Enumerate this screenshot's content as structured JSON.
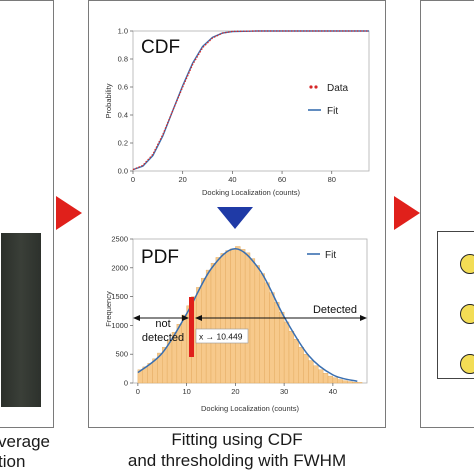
{
  "left_caption": {
    "line1": "verage",
    "line2": "tion"
  },
  "center_caption": {
    "line1": "Fitting using CDF",
    "line2": "and thresholding with FWHM"
  },
  "cdf_chart": {
    "title": "CDF",
    "xlabel": "Docking Localization (counts)",
    "ylabel": "Probability",
    "x_ticks": [
      "0",
      "20",
      "40",
      "60",
      "80"
    ],
    "y_ticks": [
      "0.0",
      "0.2",
      "0.4",
      "0.6",
      "0.8",
      "1.0"
    ],
    "legend": {
      "data": "Data",
      "fit": "Fit"
    },
    "colors": {
      "data": "#d62728",
      "fit": "#3a6fb0"
    }
  },
  "pdf_chart": {
    "title": "PDF",
    "xlabel": "Docking Localization (counts)",
    "ylabel": "Frequency",
    "x_ticks": [
      "0",
      "10",
      "20",
      "30",
      "40"
    ],
    "y_ticks": [
      "0",
      "500",
      "1000",
      "1500",
      "2000",
      "2500"
    ],
    "legend": {
      "fit": "Fit"
    },
    "not_detected_label_line1": "not",
    "not_detected_label_line2": "detected",
    "detected_label": "Detected",
    "threshold_label": "x → 10.449",
    "colors": {
      "bars": "#f7c98b",
      "bar_edge": "#e0a75a",
      "fit": "#3a6fb0",
      "threshold": "#e0201b"
    }
  },
  "chart_data": [
    {
      "type": "line",
      "title": "CDF",
      "xlabel": "Docking Localization (counts)",
      "ylabel": "Probability",
      "xlim": [
        0,
        95
      ],
      "ylim": [
        0,
        1.0
      ],
      "series": [
        {
          "name": "Data",
          "x": [
            0,
            4,
            8,
            12,
            16,
            20,
            24,
            28,
            32,
            36,
            40,
            50,
            60,
            80,
            95
          ],
          "y": [
            0.01,
            0.04,
            0.12,
            0.26,
            0.43,
            0.6,
            0.76,
            0.88,
            0.95,
            0.985,
            0.997,
            1.0,
            1.0,
            1.0,
            1.0
          ]
        },
        {
          "name": "Fit",
          "x": [
            0,
            4,
            8,
            12,
            16,
            20,
            24,
            28,
            32,
            36,
            40,
            50,
            60,
            80,
            95
          ],
          "y": [
            0.01,
            0.035,
            0.11,
            0.25,
            0.43,
            0.61,
            0.77,
            0.89,
            0.955,
            0.985,
            0.996,
            1.0,
            1.0,
            1.0,
            1.0
          ]
        }
      ]
    },
    {
      "type": "bar",
      "title": "PDF",
      "xlabel": "Docking Localization (counts)",
      "ylabel": "Frequency",
      "xlim": [
        -1,
        47
      ],
      "ylim": [
        0,
        2500
      ],
      "bin_width": 1,
      "bin_starts": [
        0,
        1,
        2,
        3,
        4,
        5,
        6,
        7,
        8,
        9,
        10,
        11,
        12,
        13,
        14,
        15,
        16,
        17,
        18,
        19,
        20,
        21,
        22,
        23,
        24,
        25,
        26,
        27,
        28,
        29,
        30,
        31,
        32,
        33,
        34,
        35,
        36,
        37,
        38,
        39,
        40,
        41,
        42,
        43,
        44,
        45
      ],
      "values": [
        230,
        280,
        340,
        420,
        520,
        620,
        740,
        880,
        1020,
        1180,
        1340,
        1500,
        1660,
        1820,
        1960,
        2080,
        2180,
        2250,
        2300,
        2330,
        2370,
        2320,
        2260,
        2160,
        2040,
        1900,
        1740,
        1570,
        1400,
        1230,
        1060,
        900,
        760,
        620,
        500,
        390,
        300,
        230,
        170,
        120,
        90,
        60,
        40,
        25,
        15,
        10
      ],
      "series": [
        {
          "name": "Fit",
          "x": [
            0,
            5,
            10,
            15,
            20,
            25,
            30,
            35,
            40,
            45
          ],
          "y": [
            180,
            520,
            1200,
            1980,
            2330,
            1960,
            1150,
            480,
            140,
            30
          ]
        }
      ],
      "threshold_x": 10.449
    }
  ]
}
